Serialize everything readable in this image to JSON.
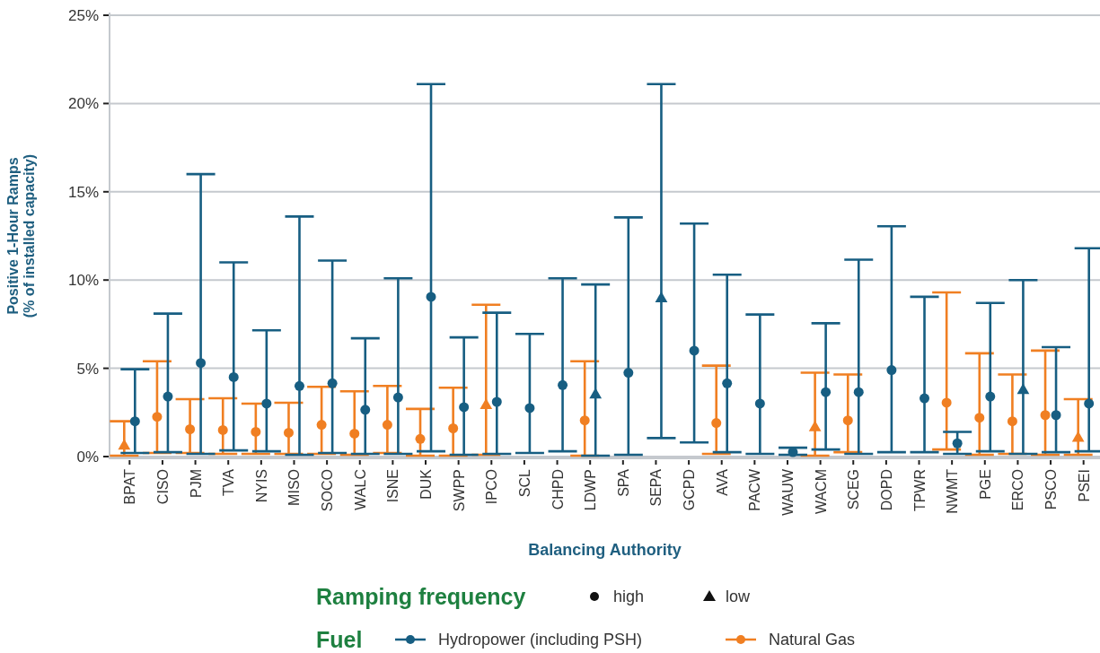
{
  "chart_data": {
    "type": "scatter",
    "categories": [
      "BPAT",
      "CISO",
      "PJM",
      "TVA",
      "NYIS",
      "MISO",
      "SOCO",
      "WALC",
      "ISNE",
      "DUK",
      "SWPP",
      "IPCO",
      "SCL",
      "CHPD",
      "LDWP",
      "SPA",
      "SEPA",
      "GCPD",
      "AVA",
      "PACW",
      "WAUW",
      "WACM",
      "SCEG",
      "DOPD",
      "TPWR",
      "NWMT",
      "PGE",
      "ERCO",
      "PSCO",
      "PSEI"
    ],
    "ylabel": "Positive 1-Hour Ramps\n(% of installed capacity)",
    "xlabel": "Balancing Authority",
    "ylim": [
      0,
      25
    ],
    "yticks": [
      {
        "value": 0,
        "label": "0%"
      },
      {
        "value": 5,
        "label": "5%"
      },
      {
        "value": 10,
        "label": "10%"
      },
      {
        "value": 15,
        "label": "15%"
      },
      {
        "value": 20,
        "label": "20%"
      },
      {
        "value": 25,
        "label": "25%"
      }
    ],
    "grid": "y",
    "legend": "bottom",
    "legend_title": "Fuel",
    "annotations": [
      "Ramping frequency",
      "high",
      "low"
    ],
    "series": [
      {
        "name": "Natural Gas",
        "color": "#f07f22",
        "marker": "circle",
        "values": [
          null,
          2.25,
          1.55,
          1.5,
          1.4,
          1.35,
          1.8,
          1.3,
          1.8,
          1.0,
          1.6,
          null,
          null,
          null,
          2.05,
          null,
          null,
          null,
          1.9,
          null,
          null,
          null,
          2.05,
          null,
          null,
          3.05,
          2.2,
          2.0,
          2.35,
          null
        ],
        "errors": [
          null,
          [
            0.2,
            5.4
          ],
          [
            0.2,
            3.25
          ],
          [
            0.15,
            3.3
          ],
          [
            0.15,
            3.0
          ],
          [
            0.15,
            3.05
          ],
          [
            0.15,
            3.95
          ],
          [
            0.1,
            3.7
          ],
          [
            0.2,
            4.0
          ],
          [
            0.05,
            2.7
          ],
          [
            0.05,
            3.9
          ],
          null,
          null,
          null,
          [
            0.05,
            5.4
          ],
          null,
          null,
          null,
          [
            0.15,
            5.15
          ],
          null,
          null,
          null,
          [
            0.25,
            4.65
          ],
          null,
          null,
          [
            0.4,
            9.3
          ],
          [
            0.1,
            5.85
          ],
          [
            0.15,
            4.65
          ],
          [
            0.1,
            6.0
          ],
          null
        ]
      },
      {
        "color": "#f07f22",
        "marker": "triangle",
        "values": [
          0.65,
          null,
          null,
          null,
          null,
          null,
          null,
          null,
          null,
          null,
          null,
          2.95,
          null,
          null,
          null,
          null,
          null,
          null,
          null,
          null,
          null,
          1.7,
          null,
          null,
          null,
          null,
          null,
          null,
          null,
          1.1
        ],
        "errors": [
          [
            0.05,
            2.0
          ],
          null,
          null,
          null,
          null,
          null,
          null,
          null,
          null,
          null,
          null,
          [
            0.1,
            8.6
          ],
          null,
          null,
          null,
          null,
          null,
          null,
          null,
          null,
          null,
          [
            0.05,
            4.75
          ],
          null,
          null,
          null,
          null,
          null,
          null,
          null,
          [
            0.1,
            3.25
          ]
        ]
      },
      {
        "name": "Hydropower (including PSH)",
        "color": "#175e82",
        "marker": "circle",
        "values": [
          2.0,
          3.4,
          5.3,
          4.5,
          3.0,
          4.0,
          4.15,
          2.65,
          3.35,
          9.05,
          2.8,
          3.1,
          2.75,
          4.05,
          null,
          4.75,
          null,
          6.0,
          4.15,
          3.0,
          0.25,
          3.65,
          3.65,
          4.9,
          3.3,
          0.75,
          3.4,
          null,
          2.35,
          3.0
        ],
        "errors": [
          [
            0.2,
            4.95
          ],
          [
            0.25,
            8.1
          ],
          [
            0.15,
            16.0
          ],
          [
            0.35,
            11.0
          ],
          [
            0.3,
            7.15
          ],
          [
            0.1,
            13.6
          ],
          [
            0.2,
            11.1
          ],
          [
            0.15,
            6.7
          ],
          [
            0.15,
            10.1
          ],
          [
            0.3,
            21.1
          ],
          [
            0.1,
            6.75
          ],
          [
            0.15,
            8.15
          ],
          [
            0.2,
            6.95
          ],
          [
            0.3,
            10.1
          ],
          null,
          [
            0.1,
            13.55
          ],
          null,
          [
            0.8,
            13.2
          ],
          [
            0.25,
            10.3
          ],
          [
            0.15,
            8.05
          ],
          [
            0.1,
            0.5
          ],
          [
            0.4,
            7.55
          ],
          [
            0.15,
            11.15
          ],
          [
            0.25,
            13.05
          ],
          [
            0.25,
            9.05
          ],
          [
            0.15,
            1.4
          ],
          [
            0.3,
            8.7
          ],
          null,
          [
            0.25,
            6.2
          ],
          [
            0.3,
            11.8
          ]
        ]
      },
      {
        "color": "#175e82",
        "marker": "triangle",
        "values": [
          null,
          null,
          null,
          null,
          null,
          null,
          null,
          null,
          null,
          null,
          null,
          null,
          null,
          null,
          3.55,
          null,
          9.0,
          null,
          null,
          null,
          null,
          null,
          null,
          null,
          null,
          null,
          null,
          3.8,
          null,
          null
        ],
        "errors": [
          null,
          null,
          null,
          null,
          null,
          null,
          null,
          null,
          null,
          null,
          null,
          null,
          null,
          null,
          [
            0.05,
            9.75
          ],
          null,
          [
            1.05,
            21.1
          ],
          null,
          null,
          null,
          null,
          null,
          null,
          null,
          null,
          null,
          null,
          [
            0.15,
            10.0
          ],
          null,
          null
        ]
      }
    ]
  }
}
